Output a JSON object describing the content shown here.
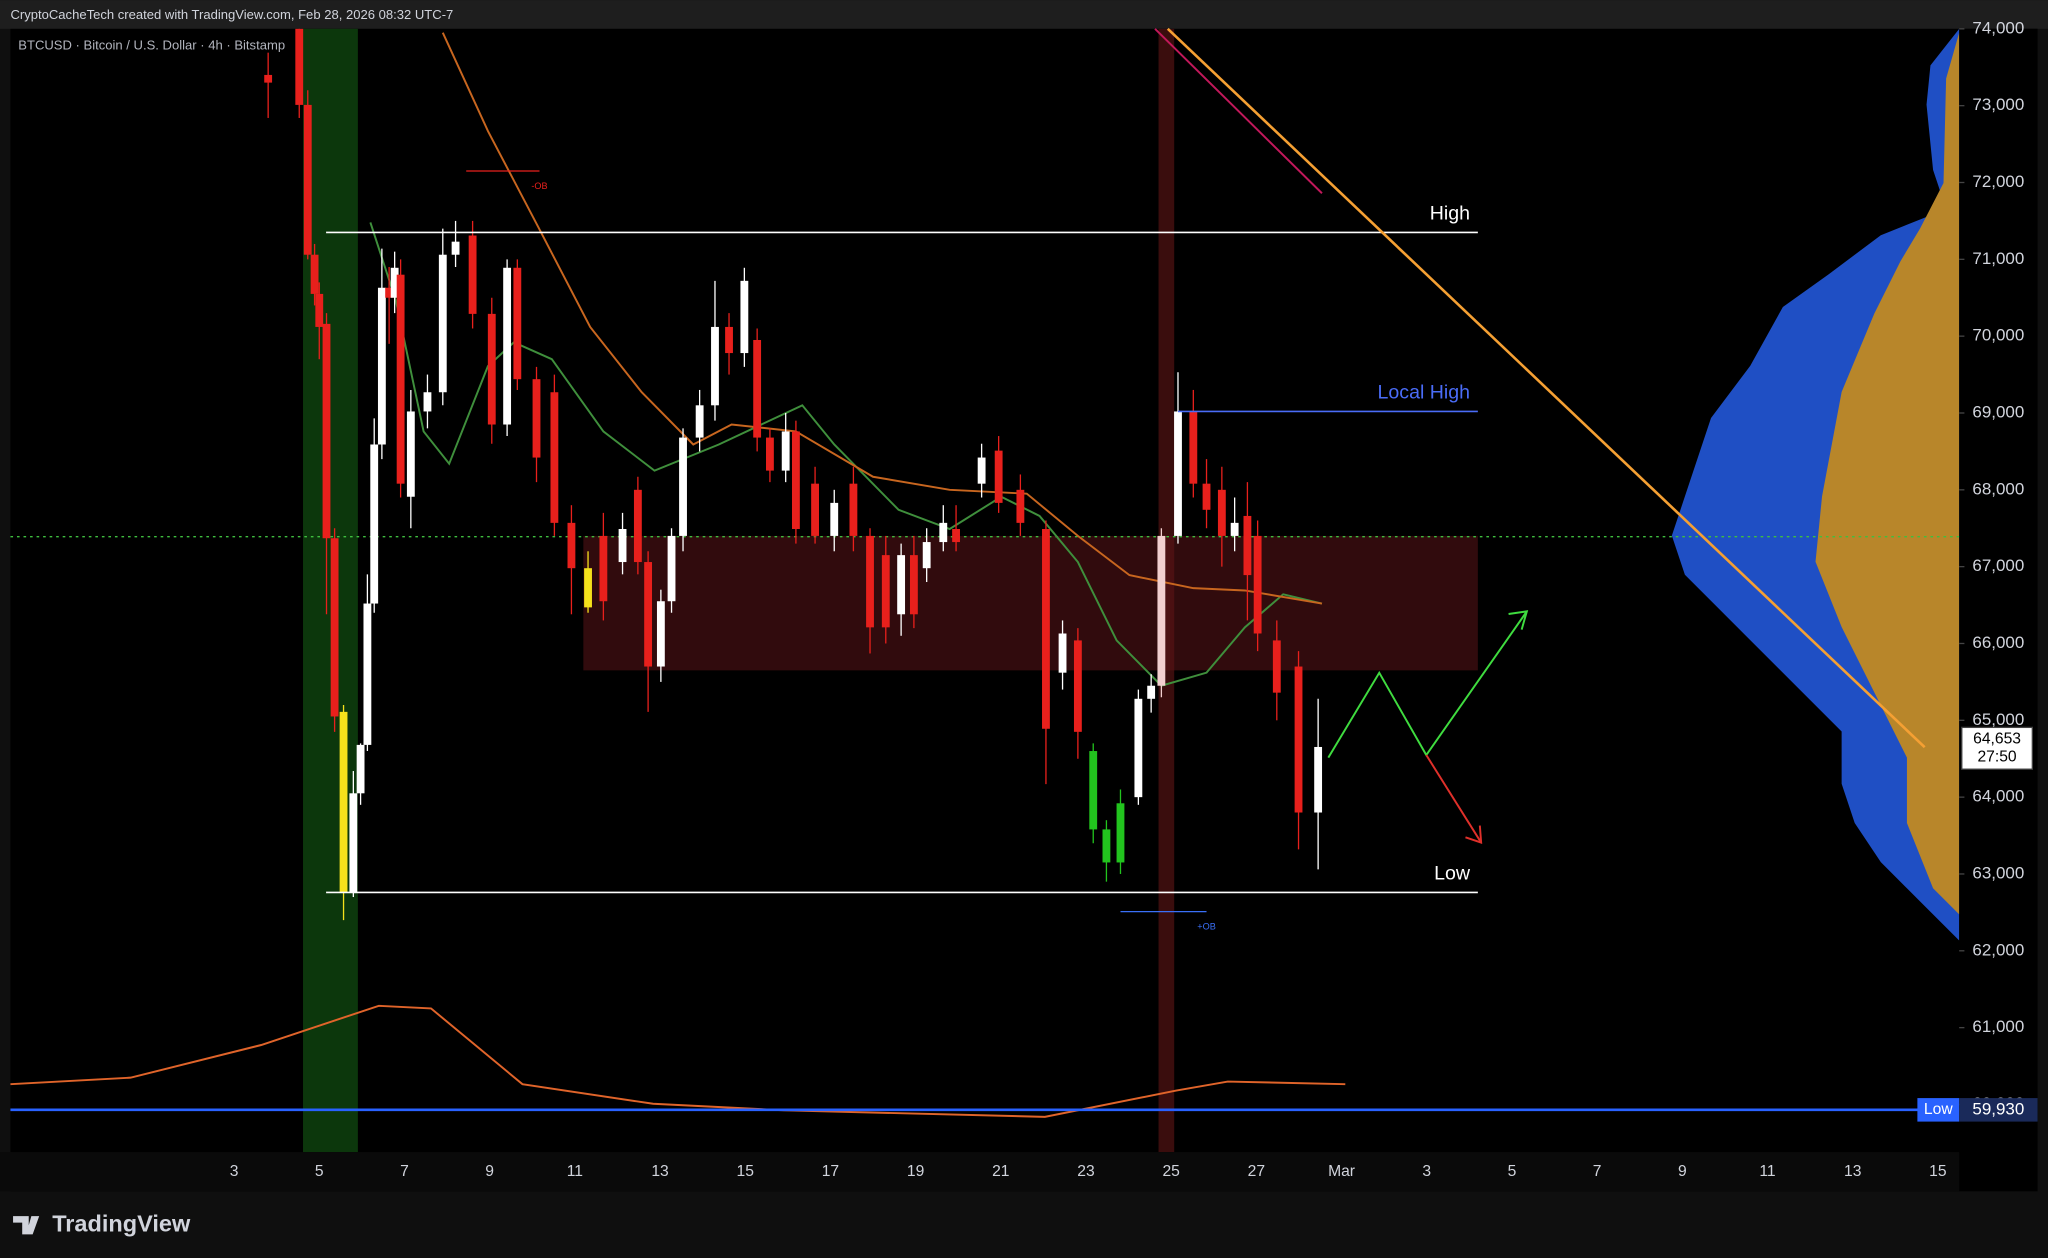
{
  "chart_data": {
    "type": "candlestick",
    "header": "CryptoCacheTech created with TradingView.com, Feb 28, 2026 08:32 UTC-7",
    "symbol": "BTCUSD · Bitcoin / U.S. Dollar · 4h · Bitstamp",
    "brand": "TradingView",
    "up_color": "#ffffff",
    "down_color": "#e8201c",
    "xlim": [
      -2.25,
      43.5
    ],
    "xticks": [
      3,
      5,
      7,
      9,
      11,
      13,
      15,
      17,
      19,
      21,
      23,
      25,
      27,
      {
        "value": 29,
        "label": "Mar"
      },
      {
        "value": 31,
        "label": "3"
      },
      {
        "value": 33,
        "label": "5"
      },
      {
        "value": 35,
        "label": "7"
      },
      {
        "value": 37,
        "label": "9"
      },
      {
        "value": 39,
        "label": "11"
      },
      {
        "value": 41,
        "label": "13"
      },
      {
        "value": 43,
        "label": "15"
      }
    ],
    "ylim": [
      59380,
      74000
    ],
    "yticks": [
      {
        "value": 60000,
        "label": "60,000"
      },
      {
        "value": 61000,
        "label": "61,000"
      },
      {
        "value": 62000,
        "label": "62,000"
      },
      {
        "value": 63000,
        "label": "63,000"
      },
      {
        "value": 64000,
        "label": "64,000"
      },
      {
        "value": 65000,
        "label": "65,000"
      },
      {
        "value": 66000,
        "label": "66,000"
      },
      {
        "value": 67000,
        "label": "67,000"
      },
      {
        "value": 68000,
        "label": "68,000"
      },
      {
        "value": 69000,
        "label": "69,000"
      },
      {
        "value": 70000,
        "label": "70,000"
      },
      {
        "value": 71000,
        "label": "71,000"
      },
      {
        "value": 72000,
        "label": "72,000"
      },
      {
        "value": 73000,
        "label": "73,000"
      },
      {
        "value": 74000,
        "label": "74,000"
      }
    ],
    "candles": [
      {
        "x": 3.8,
        "open": 73400,
        "high": 73690,
        "low": 72840,
        "close": 73300
      },
      {
        "x": 4.53,
        "open": 74000,
        "high": 74000,
        "low": 72840,
        "close": 73010
      },
      {
        "x": 4.73,
        "open": 73010,
        "high": 73200,
        "low": 71000,
        "close": 71060
      },
      {
        "x": 4.89,
        "open": 71060,
        "high": 71200,
        "low": 70400,
        "close": 70550
      },
      {
        "x": 5.0,
        "open": 70550,
        "high": 70700,
        "low": 69700,
        "close": 70120
      },
      {
        "x": 5.17,
        "open": 70160,
        "high": 70300,
        "low": 66380,
        "close": 67370
      },
      {
        "x": 5.36,
        "open": 67370,
        "high": 67500,
        "low": 64850,
        "close": 65050
      },
      {
        "x": 5.57,
        "open": 65110,
        "high": 65200,
        "low": 62400,
        "close": 62760,
        "color": "#f5e11b"
      },
      {
        "x": 5.8,
        "open": 62760,
        "high": 64340,
        "low": 62700,
        "close": 64050
      },
      {
        "x": 5.97,
        "open": 64050,
        "high": 64700,
        "low": 63900,
        "close": 64680
      },
      {
        "x": 6.13,
        "open": 64680,
        "high": 66900,
        "low": 64600,
        "close": 66520
      },
      {
        "x": 6.29,
        "open": 66520,
        "high": 68930,
        "low": 66400,
        "close": 68590
      },
      {
        "x": 6.47,
        "open": 68590,
        "high": 71140,
        "low": 68400,
        "close": 70630
      },
      {
        "x": 6.64,
        "open": 70630,
        "high": 70900,
        "low": 69900,
        "close": 70500
      },
      {
        "x": 6.77,
        "open": 70500,
        "high": 71100,
        "low": 70300,
        "close": 70890
      },
      {
        "x": 6.91,
        "open": 70800,
        "high": 71000,
        "low": 67900,
        "close": 68080
      },
      {
        "x": 7.15,
        "open": 67910,
        "high": 69300,
        "low": 67500,
        "close": 69020
      },
      {
        "x": 7.54,
        "open": 69020,
        "high": 69500,
        "low": 68800,
        "close": 69270
      },
      {
        "x": 7.9,
        "open": 69270,
        "high": 71400,
        "low": 69100,
        "close": 71060
      },
      {
        "x": 8.2,
        "open": 71060,
        "high": 71500,
        "low": 70900,
        "close": 71230
      },
      {
        "x": 8.6,
        "open": 71310,
        "high": 71500,
        "low": 70100,
        "close": 70290
      },
      {
        "x": 9.05,
        "open": 70290,
        "high": 70500,
        "low": 68600,
        "close": 68850
      },
      {
        "x": 9.41,
        "open": 68850,
        "high": 71000,
        "low": 68700,
        "close": 70890
      },
      {
        "x": 9.65,
        "open": 70890,
        "high": 71000,
        "low": 69300,
        "close": 69440
      },
      {
        "x": 10.1,
        "open": 69440,
        "high": 69600,
        "low": 68100,
        "close": 68420
      },
      {
        "x": 10.52,
        "open": 69270,
        "high": 69500,
        "low": 67400,
        "close": 67570
      },
      {
        "x": 10.92,
        "open": 67570,
        "high": 67800,
        "low": 66380,
        "close": 66980
      },
      {
        "x": 11.31,
        "open": 66980,
        "high": 67200,
        "low": 66400,
        "close": 66470,
        "color": "#f5e11b"
      },
      {
        "x": 11.67,
        "open": 67400,
        "high": 67700,
        "low": 66300,
        "close": 66550
      },
      {
        "x": 12.12,
        "open": 67060,
        "high": 67700,
        "low": 66900,
        "close": 67490
      },
      {
        "x": 12.48,
        "open": 68000,
        "high": 68170,
        "low": 66900,
        "close": 67060
      },
      {
        "x": 12.72,
        "open": 67060,
        "high": 67200,
        "low": 65110,
        "close": 65700
      },
      {
        "x": 13.02,
        "open": 65700,
        "high": 66700,
        "low": 65500,
        "close": 66550
      },
      {
        "x": 13.27,
        "open": 66550,
        "high": 67500,
        "low": 66400,
        "close": 67400
      },
      {
        "x": 13.54,
        "open": 67400,
        "high": 68800,
        "low": 67200,
        "close": 68680
      },
      {
        "x": 13.93,
        "open": 68680,
        "high": 69300,
        "low": 68500,
        "close": 69100
      },
      {
        "x": 14.29,
        "open": 69100,
        "high": 70720,
        "low": 68900,
        "close": 70120
      },
      {
        "x": 14.62,
        "open": 70120,
        "high": 70300,
        "low": 69500,
        "close": 69780
      },
      {
        "x": 14.98,
        "open": 69780,
        "high": 70890,
        "low": 69600,
        "close": 70720
      },
      {
        "x": 15.28,
        "open": 69950,
        "high": 70100,
        "low": 68500,
        "close": 68680
      },
      {
        "x": 15.58,
        "open": 68680,
        "high": 68800,
        "low": 68100,
        "close": 68250
      },
      {
        "x": 15.95,
        "open": 68250,
        "high": 69000,
        "low": 68100,
        "close": 68760
      },
      {
        "x": 16.19,
        "open": 68760,
        "high": 68900,
        "low": 67300,
        "close": 67490
      },
      {
        "x": 16.64,
        "open": 68080,
        "high": 68300,
        "low": 67300,
        "close": 67400
      },
      {
        "x": 17.09,
        "open": 67400,
        "high": 68000,
        "low": 67200,
        "close": 67830
      },
      {
        "x": 17.54,
        "open": 68080,
        "high": 68300,
        "low": 67200,
        "close": 67400
      },
      {
        "x": 17.93,
        "open": 67400,
        "high": 67500,
        "low": 65870,
        "close": 66210
      },
      {
        "x": 18.3,
        "open": 67150,
        "high": 67400,
        "low": 66000,
        "close": 66210
      },
      {
        "x": 18.66,
        "open": 66380,
        "high": 67300,
        "low": 66100,
        "close": 67150
      },
      {
        "x": 18.96,
        "open": 67150,
        "high": 67400,
        "low": 66200,
        "close": 66380
      },
      {
        "x": 19.26,
        "open": 66980,
        "high": 67500,
        "low": 66800,
        "close": 67320
      },
      {
        "x": 19.65,
        "open": 67320,
        "high": 67800,
        "low": 67200,
        "close": 67570
      },
      {
        "x": 19.95,
        "open": 67490,
        "high": 67800,
        "low": 67200,
        "close": 67320
      },
      {
        "x": 20.55,
        "open": 68080,
        "high": 68600,
        "low": 67900,
        "close": 68420
      },
      {
        "x": 20.95,
        "open": 68510,
        "high": 68700,
        "low": 67700,
        "close": 67830
      },
      {
        "x": 21.46,
        "open": 68000,
        "high": 68200,
        "low": 67400,
        "close": 67570
      },
      {
        "x": 22.06,
        "open": 67490,
        "high": 67600,
        "low": 64170,
        "close": 64890
      },
      {
        "x": 22.45,
        "open": 65620,
        "high": 66300,
        "low": 65400,
        "close": 66130
      },
      {
        "x": 22.81,
        "open": 66040,
        "high": 66200,
        "low": 64500,
        "close": 64850
      },
      {
        "x": 23.17,
        "open": 64600,
        "high": 64700,
        "low": 63400,
        "close": 63580,
        "color": "#22c41e"
      },
      {
        "x": 23.48,
        "open": 63580,
        "high": 63700,
        "low": 62900,
        "close": 63150,
        "color": "#22c41e"
      },
      {
        "x": 23.81,
        "open": 63150,
        "high": 64100,
        "low": 63000,
        "close": 63920,
        "color": "#22c41e"
      },
      {
        "x": 24.23,
        "open": 64000,
        "high": 65400,
        "low": 63900,
        "close": 65280
      },
      {
        "x": 24.53,
        "open": 65280,
        "high": 65600,
        "low": 65100,
        "close": 65450
      },
      {
        "x": 24.77,
        "open": 65450,
        "high": 67500,
        "low": 65300,
        "close": 67400,
        "color": "#f2cfcf"
      },
      {
        "x": 25.16,
        "open": 67400,
        "high": 69530,
        "low": 67300,
        "close": 69020
      },
      {
        "x": 25.52,
        "open": 69020,
        "high": 69300,
        "low": 67900,
        "close": 68080
      },
      {
        "x": 25.83,
        "open": 68080,
        "high": 68400,
        "low": 67500,
        "close": 67740
      },
      {
        "x": 26.19,
        "open": 68000,
        "high": 68300,
        "low": 67000,
        "close": 67400
      },
      {
        "x": 26.49,
        "open": 67400,
        "high": 67900,
        "low": 67200,
        "close": 67570
      },
      {
        "x": 26.79,
        "open": 67660,
        "high": 68100,
        "low": 66300,
        "close": 66890
      },
      {
        "x": 27.03,
        "open": 67400,
        "high": 67600,
        "low": 65900,
        "close": 66130
      },
      {
        "x": 27.48,
        "open": 66040,
        "high": 66300,
        "low": 65000,
        "close": 65360
      },
      {
        "x": 27.99,
        "open": 65700,
        "high": 65900,
        "low": 63320,
        "close": 63800
      },
      {
        "x": 28.45,
        "open": 63800,
        "high": 65280,
        "low": 63060,
        "close": 64653
      }
    ],
    "lines": [
      {
        "color": "#3f8f3c",
        "x": [
          6.2,
          6.8,
          7.45,
          8.05,
          8.96,
          9.57,
          10.46,
          11.67,
          12.87,
          14.38,
          16.34,
          17.09,
          18.6,
          19.8,
          21.01,
          21.91,
          22.81,
          23.72,
          24.77,
          25.83,
          26.73,
          27.63,
          28.54
        ],
        "values": [
          71480,
          70460,
          68760,
          68340,
          69610,
          69920,
          69700,
          68760,
          68250,
          68590,
          69100,
          68590,
          67740,
          67490,
          67910,
          67660,
          67060,
          66040,
          65450,
          65620,
          66210,
          66640,
          66520
        ]
      },
      {
        "color": "#c8661f",
        "x": [
          7.9,
          8.96,
          10.16,
          11.36,
          12.57,
          13.78,
          14.68,
          16.19,
          18.0,
          19.8,
          21.61,
          22.81,
          24.02,
          25.52,
          26.73,
          28.54
        ],
        "values": [
          73950,
          72670,
          71400,
          70120,
          69270,
          68590,
          68850,
          68760,
          68170,
          68000,
          67950,
          67400,
          66890,
          66720,
          66690,
          66520
        ]
      },
      {
        "color": "#c2185b",
        "x": [
          24.62,
          28.54
        ],
        "values": [
          74000,
          71860
        ]
      }
    ],
    "trendline": {
      "color": "#f5a033",
      "x": [
        24.92,
        42.69
      ],
      "values": [
        74000,
        64650
      ]
    },
    "fvg_zone": {
      "x": [
        11.2,
        32.2
      ],
      "values": [
        67400,
        65650
      ]
    },
    "dotted_level": {
      "color": "#3fbf3f",
      "value": 67390
    },
    "levels": [
      {
        "label": "High",
        "value": 71350,
        "x": [
          5.16,
          32.2
        ],
        "color": "#ffffff"
      },
      {
        "label": "Local High",
        "value": 69020,
        "x": [
          25.16,
          32.2
        ],
        "color": "#4a6cf7"
      },
      {
        "label": "Low",
        "value": 62760,
        "x": [
          5.16,
          32.2
        ],
        "color": "#ffffff"
      }
    ],
    "order_blocks": [
      {
        "label": "-OB",
        "value": 72150,
        "x": [
          8.45,
          10.17
        ],
        "color": "#e8201c"
      },
      {
        "label": "+OB",
        "value": 62510,
        "x": [
          23.81,
          25.83
        ],
        "color": "#3a6ff7"
      }
    ],
    "low_line": {
      "label": "Low",
      "value": 59930,
      "value_label": "59,930",
      "color": "#2962ff"
    },
    "last_price": 64653,
    "last_price_label": "64,653",
    "countdown": "27:50"
  }
}
